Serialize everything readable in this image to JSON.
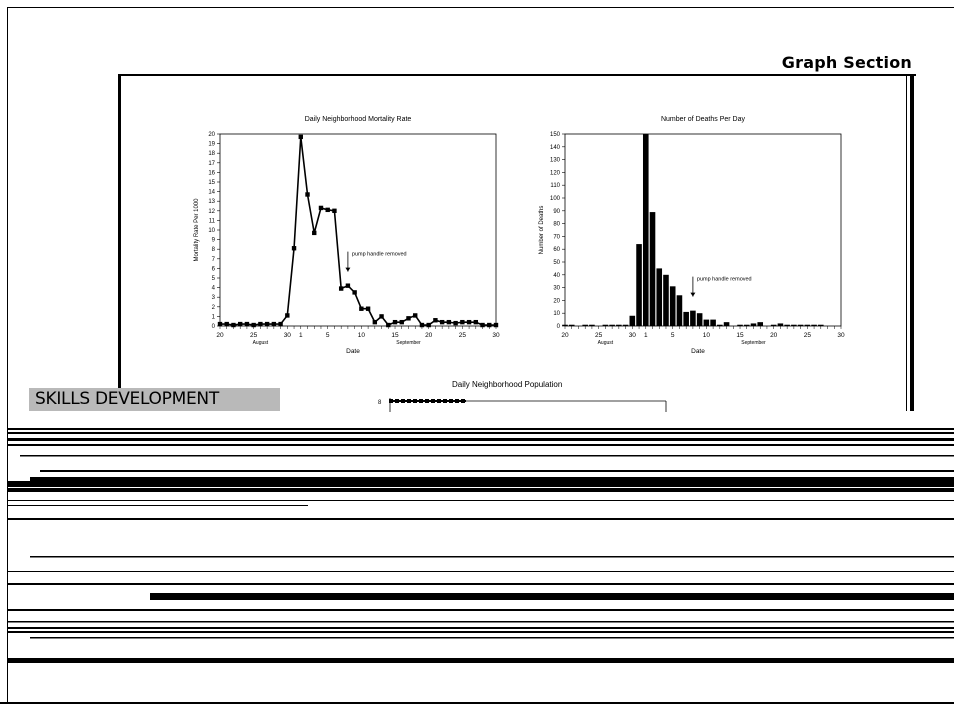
{
  "page": {
    "section_title": "Graph Section",
    "skills_heading": "SKILLS DEVELOPMENT",
    "population_title": "Daily Neighborhood Population",
    "population_axis_top": "8"
  },
  "chart_data": [
    {
      "type": "line",
      "title": "Daily Neighborhood Mortality Rate",
      "xlabel": "Date",
      "ylabel": "Mortality Rate Per 1000",
      "ylim": [
        0,
        20
      ],
      "xlim": [
        20,
        61
      ],
      "x_tick_labels": [
        "20",
        "25",
        "30",
        "1",
        "5",
        "10",
        "15",
        "20",
        "25",
        "30"
      ],
      "y_tick_labels": [
        "0",
        "1",
        "2",
        "3",
        "4",
        "5",
        "6",
        "7",
        "8",
        "9",
        "10",
        "11",
        "12",
        "13",
        "14",
        "15",
        "16",
        "17",
        "18",
        "19",
        "20"
      ],
      "month_labels": [
        "August",
        "September"
      ],
      "annotation": "pump handle removed",
      "annotation_x": 39,
      "series": [
        {
          "x": [
            20,
            21,
            22,
            23,
            24,
            25,
            26,
            27,
            28,
            29,
            30,
            31,
            32,
            33,
            34,
            35,
            36,
            37,
            38,
            39,
            40,
            41,
            42,
            43,
            44,
            45,
            46,
            47,
            48,
            49,
            50,
            51,
            52,
            53,
            54,
            55,
            56,
            57,
            58,
            59,
            60,
            61
          ],
          "values": [
            0.2,
            0.2,
            0.1,
            0.2,
            0.2,
            0.1,
            0.2,
            0.2,
            0.2,
            0.2,
            1.1,
            8.1,
            19.7,
            13.7,
            9.7,
            12.3,
            12.1,
            12.0,
            3.9,
            4.2,
            3.5,
            1.8,
            1.8,
            0.4,
            1.0,
            0.1,
            0.4,
            0.4,
            0.8,
            1.1,
            0.1,
            0.1,
            0.6,
            0.4,
            0.4,
            0.3,
            0.4,
            0.4,
            0.4,
            0.1,
            0.1,
            0.1
          ]
        }
      ]
    },
    {
      "type": "bar",
      "title": "Number of Deaths Per Day",
      "xlabel": "Date",
      "ylabel": "Number of Deaths",
      "ylim": [
        0,
        150
      ],
      "xlim": [
        20,
        61
      ],
      "x_tick_labels": [
        "20",
        "25",
        "30",
        "1",
        "5",
        "10",
        "15",
        "20",
        "25",
        "30"
      ],
      "y_tick_labels": [
        "0",
        "10",
        "20",
        "30",
        "40",
        "50",
        "60",
        "70",
        "80",
        "90",
        "100",
        "110",
        "120",
        "130",
        "140",
        "150"
      ],
      "month_labels": [
        "August",
        "September"
      ],
      "annotation": "pump handle removed",
      "annotation_x": 39,
      "series": [
        {
          "x": [
            20,
            21,
            22,
            23,
            24,
            25,
            26,
            27,
            28,
            29,
            30,
            31,
            32,
            33,
            34,
            35,
            36,
            37,
            38,
            39,
            40,
            41,
            42,
            43,
            44,
            45,
            46,
            47,
            48,
            49,
            50,
            51,
            52,
            53,
            54,
            55,
            56,
            57,
            58,
            59,
            60,
            61
          ],
          "values": [
            1,
            1,
            0,
            1,
            1,
            0,
            1,
            1,
            1,
            1,
            8,
            64,
            150,
            89,
            45,
            40,
            31,
            24,
            11,
            12,
            10,
            5,
            5,
            1,
            3,
            0,
            1,
            1,
            2,
            3,
            0,
            1,
            2,
            1,
            1,
            1,
            1,
            1,
            1,
            0,
            0,
            0
          ]
        }
      ]
    }
  ]
}
